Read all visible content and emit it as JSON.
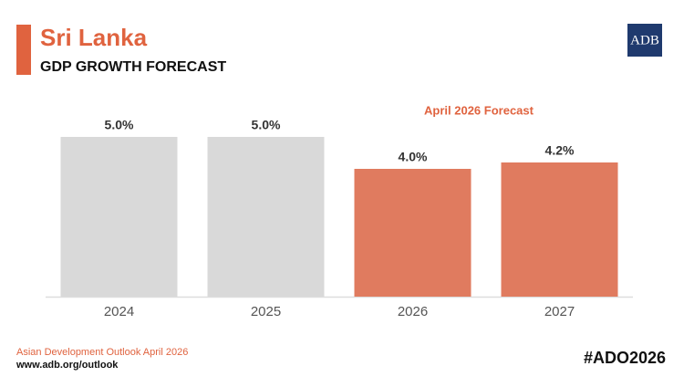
{
  "chart_data": {
    "type": "bar",
    "title": "Sri Lanka",
    "subtitle": "GDP GROWTH FORECAST",
    "categories": [
      "2024",
      "2025",
      "2026",
      "2027"
    ],
    "values": [
      5.0,
      5.0,
      4.0,
      4.2
    ],
    "value_labels": [
      "5.0%",
      "5.0%",
      "4.0%",
      "4.2%"
    ],
    "colors": [
      "#d9d9d9",
      "#d9d9d9",
      "#e07b5f",
      "#e07b5f"
    ],
    "annotation": "April 2026 Forecast",
    "logo": "ADB",
    "source": "Asian Development Outlook April 2026",
    "url": "www.adb.org/outlook",
    "hashtag": "#ADO2026"
  }
}
